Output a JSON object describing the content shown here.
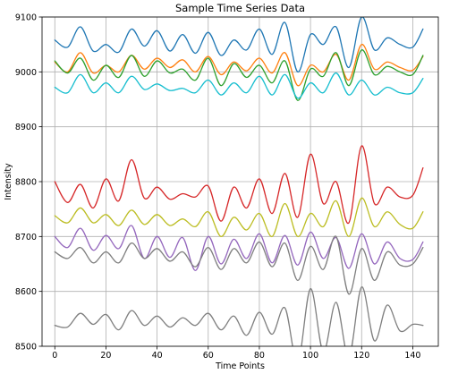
{
  "chart_data": {
    "type": "line",
    "title": "Sample Time Series Data",
    "xlabel": "Time Points",
    "ylabel": "Intensity",
    "xlim": [
      -5,
      150
    ],
    "ylim": [
      8500,
      9100
    ],
    "xticks": [
      0,
      20,
      40,
      60,
      80,
      100,
      120,
      140
    ],
    "yticks": [
      8500,
      8600,
      8700,
      8800,
      8900,
      9000,
      9100
    ],
    "grid": true,
    "legend": "none",
    "x": [
      0,
      5,
      10,
      15,
      20,
      25,
      30,
      35,
      40,
      45,
      50,
      55,
      60,
      65,
      70,
      75,
      80,
      85,
      90,
      95,
      100,
      105,
      110,
      115,
      120,
      125,
      130,
      135,
      140,
      144
    ],
    "series": [
      {
        "color": "#1f77b4",
        "values": [
          9058,
          9045,
          9082,
          9038,
          9050,
          9036,
          9078,
          9047,
          9075,
          9038,
          9068,
          9034,
          9072,
          9030,
          9058,
          9040,
          9078,
          9032,
          9090,
          9000,
          9068,
          9050,
          9082,
          9008,
          9100,
          9040,
          9062,
          9050,
          9045,
          9078
        ]
      },
      {
        "color": "#ff7f0e",
        "values": [
          9018,
          9000,
          9035,
          8998,
          9012,
          9000,
          9030,
          9005,
          9025,
          9008,
          9022,
          9000,
          9028,
          8995,
          9018,
          9002,
          9025,
          8998,
          9035,
          8975,
          9012,
          9000,
          9032,
          8985,
          9050,
          9005,
          9018,
          9008,
          9003,
          9028
        ]
      },
      {
        "color": "#2ca02c",
        "values": [
          9020,
          8998,
          9025,
          8985,
          9012,
          8990,
          9030,
          8992,
          9020,
          8998,
          9005,
          8985,
          9025,
          8975,
          9015,
          8990,
          9012,
          8980,
          9020,
          8948,
          9005,
          8992,
          9035,
          8975,
          9040,
          8995,
          9010,
          9000,
          8995,
          9030
        ]
      },
      {
        "color": "#17becf",
        "values": [
          8972,
          8962,
          8995,
          8962,
          8980,
          8962,
          8992,
          8968,
          8978,
          8966,
          8970,
          8962,
          8985,
          8958,
          8980,
          8962,
          8992,
          8958,
          8995,
          8952,
          8980,
          8962,
          8998,
          8958,
          8985,
          8958,
          8972,
          8962,
          8962,
          8988
        ]
      },
      {
        "color": "#d62728",
        "values": [
          8800,
          8762,
          8795,
          8752,
          8805,
          8765,
          8840,
          8770,
          8790,
          8768,
          8778,
          8772,
          8792,
          8728,
          8790,
          8752,
          8805,
          8742,
          8815,
          8735,
          8850,
          8760,
          8800,
          8725,
          8865,
          8760,
          8790,
          8772,
          8775,
          8825
        ]
      },
      {
        "color": "#bcbd22",
        "values": [
          8738,
          8725,
          8752,
          8725,
          8740,
          8720,
          8748,
          8722,
          8740,
          8720,
          8732,
          8718,
          8745,
          8700,
          8735,
          8712,
          8742,
          8700,
          8760,
          8700,
          8742,
          8718,
          8765,
          8700,
          8770,
          8718,
          8745,
          8722,
          8715,
          8745
        ]
      },
      {
        "color": "#9467bd",
        "values": [
          8700,
          8680,
          8715,
          8675,
          8702,
          8678,
          8720,
          8660,
          8700,
          8662,
          8698,
          8638,
          8700,
          8650,
          8695,
          8660,
          8705,
          8652,
          8702,
          8648,
          8708,
          8660,
          8698,
          8642,
          8705,
          8650,
          8690,
          8660,
          8658,
          8690
        ]
      },
      {
        "color": "#7f7f7f",
        "values": [
          8672,
          8660,
          8680,
          8652,
          8672,
          8652,
          8688,
          8660,
          8678,
          8655,
          8672,
          8645,
          8680,
          8640,
          8678,
          8652,
          8690,
          8645,
          8688,
          8620,
          8682,
          8640,
          8700,
          8595,
          8678,
          8620,
          8672,
          8648,
          8650,
          8680
        ]
      },
      {
        "color": "#7f7f7f",
        "values": [
          8538,
          8535,
          8560,
          8540,
          8558,
          8530,
          8565,
          8538,
          8555,
          8535,
          8552,
          8538,
          8560,
          8530,
          8555,
          8520,
          8562,
          8522,
          8570,
          8470,
          8605,
          8490,
          8580,
          8480,
          8608,
          8510,
          8575,
          8528,
          8540,
          8538
        ]
      }
    ]
  }
}
